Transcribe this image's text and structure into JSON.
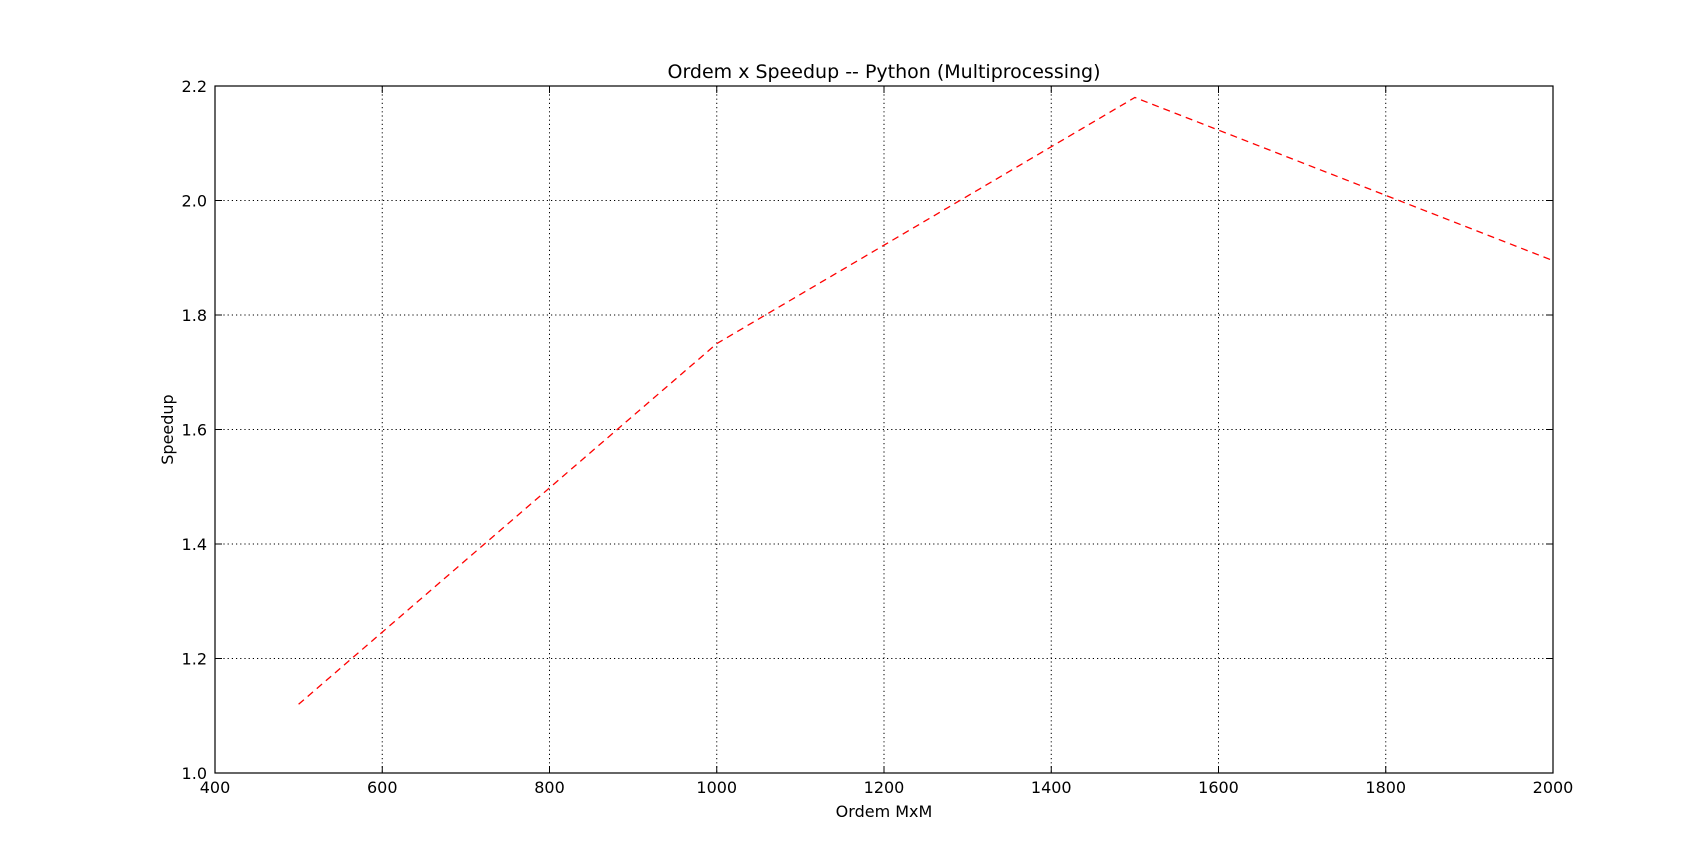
{
  "chart_data": {
    "type": "line",
    "title": "Ordem x Speedup -- Python (Multiprocessing)",
    "xlabel": "Ordem MxM",
    "ylabel": "Speedup",
    "xlim": [
      400,
      2000
    ],
    "ylim": [
      1.0,
      2.2
    ],
    "xticks": [
      400,
      600,
      800,
      1000,
      1200,
      1400,
      1600,
      1800,
      2000
    ],
    "xtick_labels": [
      "400",
      "600",
      "800",
      "1000",
      "1200",
      "1400",
      "1600",
      "1800",
      "2000"
    ],
    "yticks": [
      1.0,
      1.2,
      1.4,
      1.6,
      1.8,
      2.0,
      2.2
    ],
    "ytick_labels": [
      "1.0",
      "1.2",
      "1.4",
      "1.6",
      "1.8",
      "2.0",
      "2.2"
    ],
    "grid": true,
    "series": [
      {
        "color": "#ff0000",
        "line_style": "dashed",
        "x": [
          500,
          1000,
          1500,
          2000
        ],
        "y": [
          1.12,
          1.75,
          2.18,
          1.895
        ]
      }
    ]
  }
}
